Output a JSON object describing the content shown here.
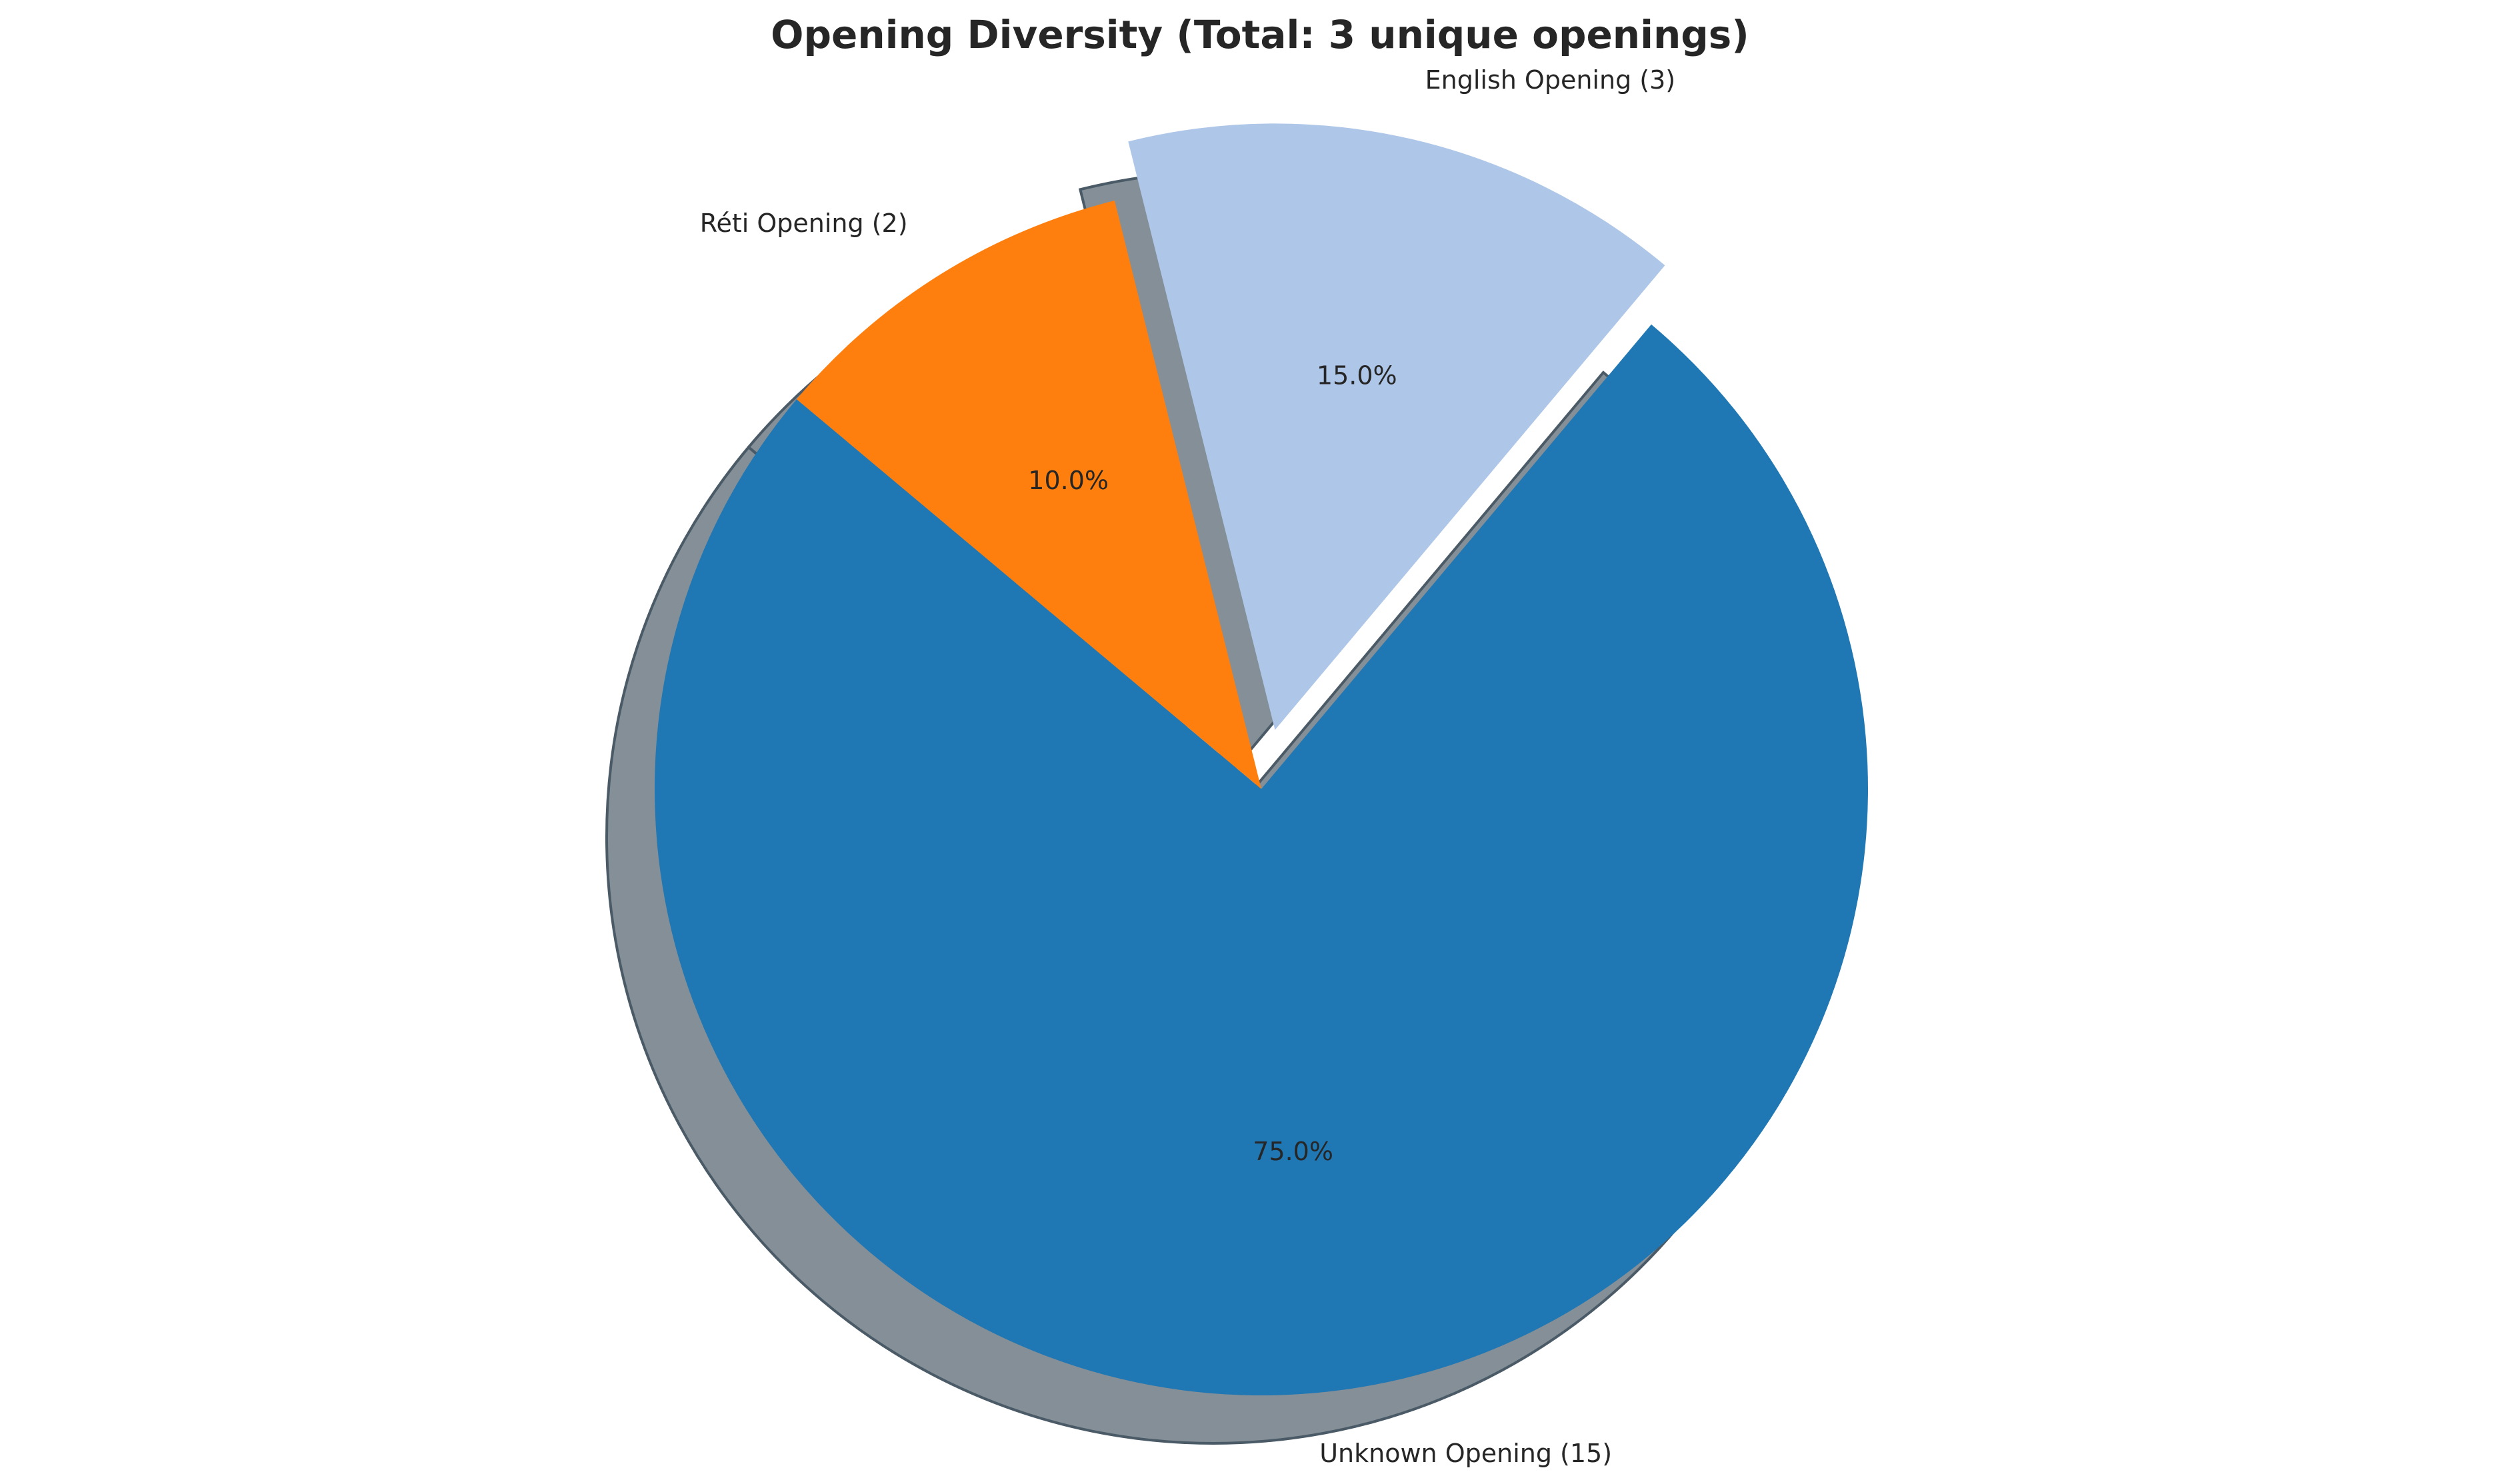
{
  "chart_data": {
    "type": "pie",
    "title": "Opening Diversity (Total: 3 unique openings)",
    "start_angle_deg": 140,
    "counterclock": true,
    "shadow": true,
    "slices": [
      {
        "label": "Unknown Opening (15)",
        "value": 15,
        "pct_label": "75.0%",
        "color": "#1f77b4",
        "explode": 0
      },
      {
        "label": "English Opening (3)",
        "value": 3,
        "pct_label": "15.0%",
        "color": "#aec7e8",
        "explode": 0.1
      },
      {
        "label": "Réti Opening (2)",
        "value": 2,
        "pct_label": "10.0%",
        "color": "#ff7f0e",
        "explode": 0
      }
    ]
  },
  "colors": {
    "shadow": "#4a5a66",
    "text": "#262626",
    "background": "#ffffff"
  }
}
